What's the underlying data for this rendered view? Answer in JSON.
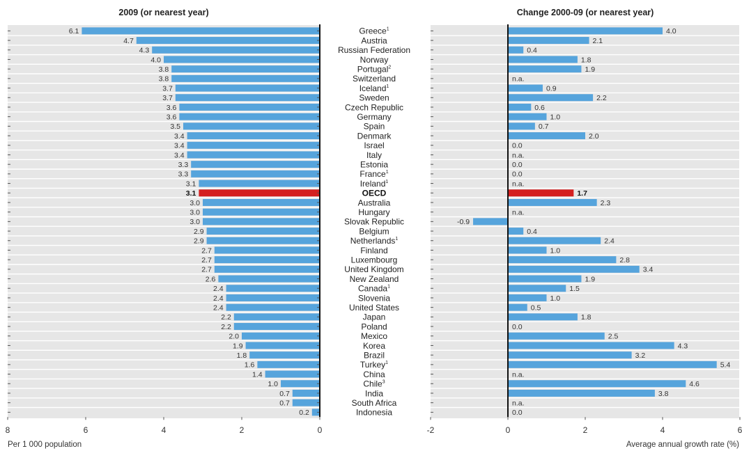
{
  "chart_data": [
    {
      "type": "bar",
      "orientation": "horizontal",
      "title": "2009 (or nearest year)",
      "xlabel": "Per 1 000 population",
      "xlim": [
        8,
        0
      ],
      "ticks": [
        "8",
        "6",
        "4",
        "2",
        "0"
      ],
      "categories": [
        "Greece",
        "Austria",
        "Russian Federation",
        "Norway",
        "Portugal",
        "Switzerland",
        "Iceland",
        "Sweden",
        "Czech Republic",
        "Germany",
        "Spain",
        "Denmark",
        "Israel",
        "Italy",
        "Estonia",
        "France",
        "Ireland",
        "OECD",
        "Australia",
        "Hungary",
        "Slovak Republic",
        "Belgium",
        "Netherlands",
        "Finland",
        "Luxembourg",
        "United Kingdom",
        "New Zealand",
        "Canada",
        "Slovenia",
        "United States",
        "Japan",
        "Poland",
        "Mexico",
        "Korea",
        "Brazil",
        "Turkey",
        "China",
        "Chile",
        "India",
        "South Africa",
        "Indonesia"
      ],
      "values": [
        6.1,
        4.7,
        4.3,
        4.0,
        3.8,
        3.8,
        3.7,
        3.7,
        3.6,
        3.6,
        3.5,
        3.4,
        3.4,
        3.4,
        3.3,
        3.3,
        3.1,
        3.1,
        3.0,
        3.0,
        3.0,
        2.9,
        2.9,
        2.7,
        2.7,
        2.7,
        2.6,
        2.4,
        2.4,
        2.4,
        2.2,
        2.2,
        2.0,
        1.9,
        1.8,
        1.6,
        1.4,
        1.0,
        0.7,
        0.7,
        0.2
      ],
      "labels": [
        "6.1",
        "4.7",
        "4.3",
        "4.0",
        "3.8",
        "3.8",
        "3.7",
        "3.7",
        "3.6",
        "3.6",
        "3.5",
        "3.4",
        "3.4",
        "3.4",
        "3.3",
        "3.3",
        "3.1",
        "3.1",
        "3.0",
        "3.0",
        "3.0",
        "2.9",
        "2.9",
        "2.7",
        "2.7",
        "2.7",
        "2.6",
        "2.4",
        "2.4",
        "2.4",
        "2.2",
        "2.2",
        "2.0",
        "1.9",
        "1.8",
        "1.6",
        "1.4",
        "1.0",
        "0.7",
        "0.7",
        "0.2"
      ]
    },
    {
      "type": "bar",
      "orientation": "horizontal",
      "title": "Change 2000-09 (or nearest year)",
      "xlabel": "Average annual growth rate (%)",
      "xlim": [
        -2,
        6
      ],
      "ticks": [
        "-2",
        "0",
        "2",
        "4",
        "6"
      ],
      "categories": [
        "Greece",
        "Austria",
        "Russian Federation",
        "Norway",
        "Portugal",
        "Switzerland",
        "Iceland",
        "Sweden",
        "Czech Republic",
        "Germany",
        "Spain",
        "Denmark",
        "Israel",
        "Italy",
        "Estonia",
        "France",
        "Ireland",
        "OECD",
        "Australia",
        "Hungary",
        "Slovak Republic",
        "Belgium",
        "Netherlands",
        "Finland",
        "Luxembourg",
        "United Kingdom",
        "New Zealand",
        "Canada",
        "Slovenia",
        "United States",
        "Japan",
        "Poland",
        "Mexico",
        "Korea",
        "Brazil",
        "Turkey",
        "China",
        "Chile",
        "India",
        "South Africa",
        "Indonesia"
      ],
      "values": [
        4.0,
        2.1,
        0.4,
        1.8,
        1.9,
        null,
        0.9,
        2.2,
        0.6,
        1.0,
        0.7,
        2.0,
        0.0,
        null,
        0.0,
        0.0,
        null,
        1.7,
        2.3,
        null,
        -0.9,
        0.4,
        2.4,
        1.0,
        2.8,
        3.4,
        1.9,
        1.5,
        1.0,
        0.5,
        1.8,
        0.0,
        2.5,
        4.3,
        3.2,
        5.4,
        null,
        4.6,
        3.8,
        null,
        0.0
      ],
      "labels": [
        "4.0",
        "2.1",
        "0.4",
        "1.8",
        "1.9",
        "n.a.",
        "0.9",
        "2.2",
        "0.6",
        "1.0",
        "0.7",
        "2.0",
        "0.0",
        "n.a.",
        "0.0",
        "0.0",
        "n.a.",
        "1.7",
        "2.3",
        "n.a.",
        "-0.9",
        "0.4",
        "2.4",
        "1.0",
        "2.8",
        "3.4",
        "1.9",
        "1.5",
        "1.0",
        "0.5",
        "1.8",
        "0.0",
        "2.5",
        "4.3",
        "3.2",
        "5.4",
        "n.a.",
        "4.6",
        "3.8",
        "n.a.",
        "0.0"
      ]
    }
  ],
  "country_labels": [
    "Greece",
    "Austria",
    "Russian Federation",
    "Norway",
    "Portugal",
    "Switzerland",
    "Iceland",
    "Sweden",
    "Czech Republic",
    "Germany",
    "Spain",
    "Denmark",
    "Israel",
    "Italy",
    "Estonia",
    "France",
    "Ireland",
    "OECD",
    "Australia",
    "Hungary",
    "Slovak Republic",
    "Belgium",
    "Netherlands",
    "Finland",
    "Luxembourg",
    "United Kingdom",
    "New Zealand",
    "Canada",
    "Slovenia",
    "United States",
    "Japan",
    "Poland",
    "Mexico",
    "Korea",
    "Brazil",
    "Turkey",
    "China",
    "Chile",
    "India",
    "South Africa",
    "Indonesia"
  ],
  "footnotes": [
    "1",
    "",
    "",
    "",
    "2",
    "",
    "1",
    "",
    "",
    "",
    "",
    "",
    "",
    "",
    "",
    "1",
    "1",
    "",
    "",
    "",
    "",
    "",
    "1",
    "",
    "",
    "",
    "",
    "1",
    "",
    "",
    "",
    "",
    "",
    "",
    "",
    "1",
    "",
    "3",
    "",
    "",
    ""
  ],
  "highlight": "OECD",
  "colors": {
    "bar": "#56A4DC",
    "highlight": "#D42020",
    "row_background": "#E6E6E6",
    "axis": "#111111"
  }
}
